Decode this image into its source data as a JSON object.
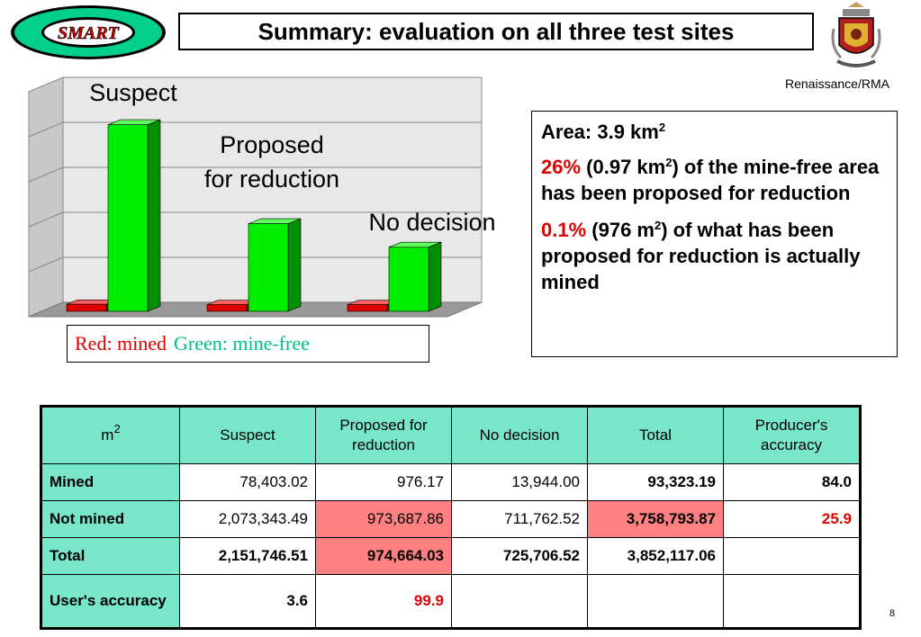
{
  "logo": {
    "text": "SMART"
  },
  "title": "Summary: evaluation on all three test sites",
  "crest_caption": "Renaissance/RMA",
  "chart_data": {
    "type": "bar",
    "categories": [
      "Suspect",
      "Proposed for reduction",
      "No decision"
    ],
    "category_labels": [
      [
        "Suspect"
      ],
      [
        "Proposed",
        "for reduction"
      ],
      [
        "No decision"
      ]
    ],
    "series": [
      {
        "name": "mined",
        "color": "#ff0000",
        "values": [
          78403.02,
          976.17,
          13944.0
        ]
      },
      {
        "name": "mine-free",
        "color": "#00ff00",
        "values": [
          2073343.49,
          973687.86,
          711762.52
        ]
      }
    ],
    "ylim": [
      0,
      2500000
    ],
    "grid": true,
    "style": "3d"
  },
  "legend": {
    "red": "Red: mined",
    "green": "Green: mine-free"
  },
  "info": {
    "area_text": "Area: 3.9 km",
    "area_sup": "2",
    "p1_red": "26%",
    "p1_a": " (0.97 km",
    "p1_sup": "2",
    "p1_b": ") of the mine-free area has been proposed for reduction",
    "p2_red": "0.1%",
    "p2_a": " (976 m",
    "p2_sup": "2",
    "p2_b": ") of what has been proposed for reduction is actually mined"
  },
  "table": {
    "corner": "m",
    "corner_sup": "2",
    "headers": [
      "Suspect",
      "Proposed for reduction",
      "No decision",
      "Total",
      "Producer's accuracy"
    ],
    "rows": [
      {
        "label": "Mined",
        "cells": [
          "78,403.02",
          "976.17",
          "13,944.00",
          "93,323.19",
          "84.0"
        ]
      },
      {
        "label": "Not mined",
        "cells": [
          "2,073,343.49",
          "973,687.86",
          "711,762.52",
          "3,758,793.87",
          "25.9"
        ]
      },
      {
        "label": "Total",
        "cells": [
          "2,151,746.51",
          "974,664.03",
          "725,706.52",
          "3,852,117.06",
          ""
        ]
      },
      {
        "label": "User's accuracy",
        "cells": [
          "3.6",
          "99.9",
          "",
          "",
          ""
        ]
      }
    ]
  },
  "page_number": "8"
}
